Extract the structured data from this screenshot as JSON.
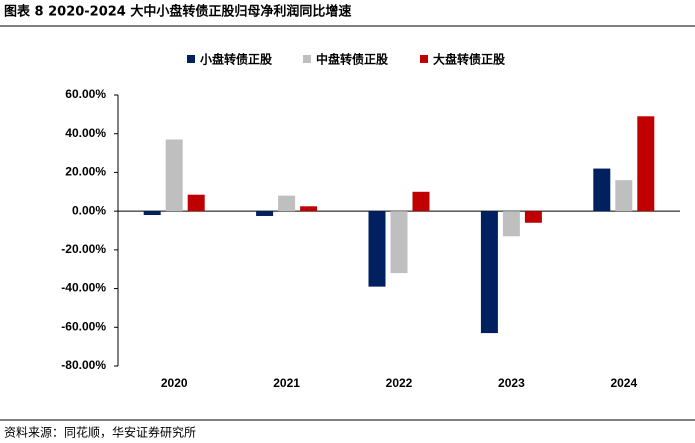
{
  "chart_data": {
    "type": "bar",
    "title": "图表 8 2020-2024 大中小盘转债正股归母净利润同比增速",
    "source": "资料来源：同花顺，华安证券研究所",
    "categories": [
      "2020",
      "2021",
      "2022",
      "2023",
      "2024"
    ],
    "series": [
      {
        "name": "小盘转债正股",
        "color": "#002060",
        "values": [
          -2,
          -2.5,
          -39,
          -63,
          22
        ]
      },
      {
        "name": "中盘转债正股",
        "color": "#bfbfbf",
        "values": [
          37,
          8,
          -32,
          -13,
          16
        ]
      },
      {
        "name": "大盘转债正股",
        "color": "#c00000",
        "values": [
          8.5,
          2.5,
          10,
          -6,
          49
        ]
      }
    ],
    "ylim": [
      -80,
      60
    ],
    "yticks": [
      {
        "value": -80,
        "label": "-80.00%"
      },
      {
        "value": -60,
        "label": "-60.00%"
      },
      {
        "value": -40,
        "label": "-40.00%"
      },
      {
        "value": -20,
        "label": "-20.00%"
      },
      {
        "value": 0,
        "label": "0.00%"
      },
      {
        "value": 20,
        "label": "20.00%"
      },
      {
        "value": 40,
        "label": "40.00%"
      },
      {
        "value": 60,
        "label": "60.00%"
      }
    ],
    "legend": "top"
  }
}
